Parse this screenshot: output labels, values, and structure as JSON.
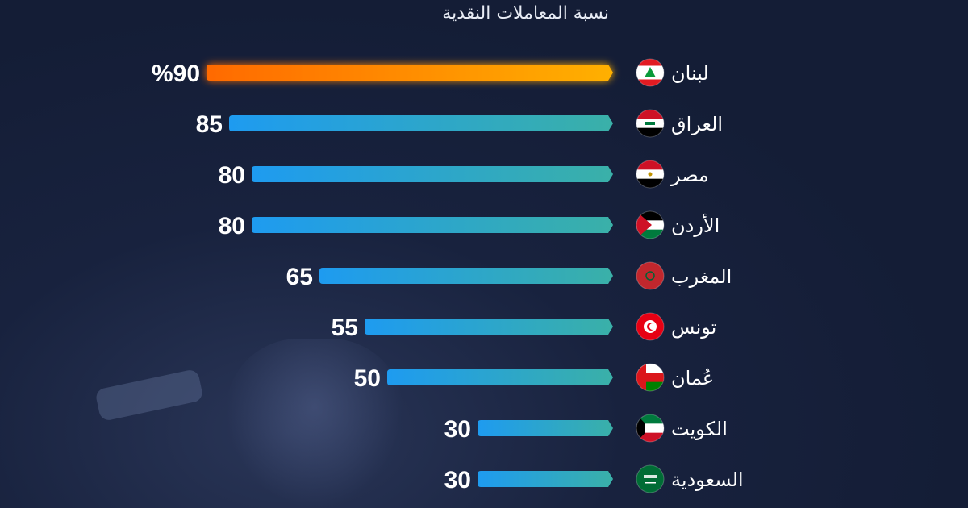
{
  "chart_data": {
    "type": "bar",
    "orientation": "horizontal",
    "title": "نسبة المعاملات النقدية",
    "unit": "%",
    "categories": [
      "لبنان",
      "العراق",
      "مصر",
      "الأردن",
      "المغرب",
      "تونس",
      "عُمان",
      "الكويت",
      "السعودية"
    ],
    "values": [
      90,
      85,
      80,
      80,
      65,
      55,
      50,
      30,
      30
    ],
    "value_labels": [
      "%90",
      "85",
      "80",
      "80",
      "65",
      "55",
      "50",
      "30",
      "30"
    ],
    "flags": [
      "lebanon-flag",
      "iraq-flag",
      "egypt-flag",
      "jordan-flag",
      "morocco-flag",
      "tunisia-flag",
      "oman-flag",
      "kuwait-flag",
      "saudi-flag"
    ],
    "highlight_color": "#ff7a00",
    "bar_color_start": "#1e9bf0",
    "bar_color_end": "#3ab0a8",
    "background_color": "#18223e",
    "legend": "none",
    "grid": false
  }
}
